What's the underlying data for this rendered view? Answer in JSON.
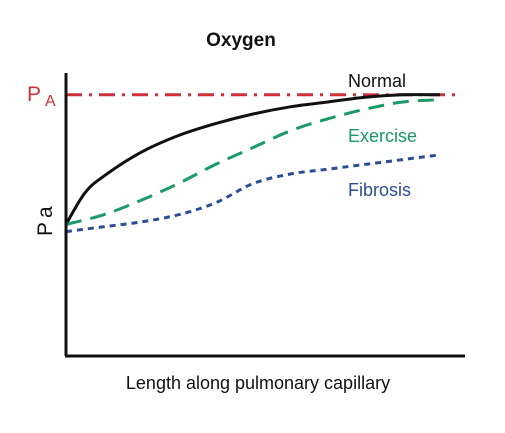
{
  "chart_data": {
    "type": "line",
    "title": "Oxygen",
    "xlabel": "Length along pulmonary capillary",
    "ylabel": {
      "main": "P",
      "sub": "a"
    },
    "xlim": [
      0,
      1
    ],
    "ylim": [
      0,
      1
    ],
    "grid": false,
    "reference_line": {
      "label": {
        "main": "P",
        "sub": "A"
      },
      "y": 0.98,
      "color": "#d0303a",
      "style": "dash-dot"
    },
    "series": [
      {
        "name": "Normal",
        "color": "#111111",
        "style": "solid",
        "x": [
          0,
          0.05,
          0.1,
          0.2,
          0.3,
          0.4,
          0.5,
          0.6,
          0.7,
          0.8,
          0.9,
          1.0
        ],
        "y": [
          0.44,
          0.57,
          0.64,
          0.74,
          0.81,
          0.86,
          0.9,
          0.93,
          0.95,
          0.97,
          0.98,
          0.98
        ]
      },
      {
        "name": "Exercise",
        "color": "#1a9a68",
        "style": "dashed",
        "x": [
          0,
          0.1,
          0.2,
          0.3,
          0.4,
          0.5,
          0.6,
          0.7,
          0.8,
          0.9,
          1.0
        ],
        "y": [
          0.44,
          0.48,
          0.54,
          0.61,
          0.69,
          0.76,
          0.83,
          0.88,
          0.92,
          0.95,
          0.96
        ]
      },
      {
        "name": "Fibrosis",
        "color": "#2c4d94",
        "style": "dotted",
        "x": [
          0,
          0.1,
          0.2,
          0.3,
          0.4,
          0.5,
          0.6,
          0.7,
          0.8,
          0.9,
          1.0
        ],
        "y": [
          0.41,
          0.43,
          0.45,
          0.48,
          0.53,
          0.61,
          0.65,
          0.67,
          0.69,
          0.71,
          0.73
        ]
      }
    ]
  }
}
